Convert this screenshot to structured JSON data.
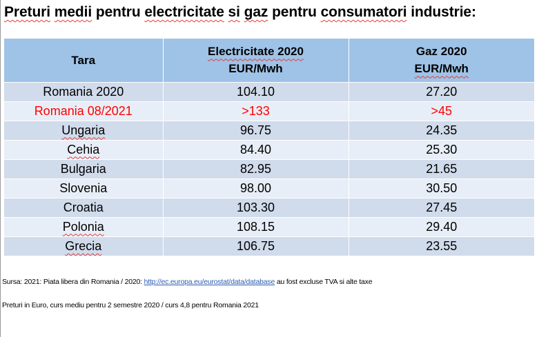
{
  "title": {
    "w1": "Preturi",
    "w2": "medii",
    "w3": "pentru",
    "w4": "electricitate",
    "w5": "si",
    "w6": "gaz",
    "w7": "pentru",
    "w8": "consumatori",
    "w9": "industrie:"
  },
  "table": {
    "headers": {
      "tara": "Tara",
      "elec_line1": "Electricitate 2020",
      "elec_line2": "EUR/Mwh",
      "gaz_line1": "Gaz 2020",
      "gaz_line2": "EUR/Mwh"
    },
    "rows": [
      {
        "country": "Romania 2020",
        "electricity": "104.10",
        "gas": "27.20"
      },
      {
        "country": "Romania 08/2021",
        "electricity": ">133",
        "gas": ">45"
      },
      {
        "country": "Ungaria",
        "electricity": "96.75",
        "gas": "24.35"
      },
      {
        "country": "Cehia",
        "electricity": "84.40",
        "gas": "25.30"
      },
      {
        "country": "Bulgaria",
        "electricity": "82.95",
        "gas": "21.65"
      },
      {
        "country": "Slovenia",
        "electricity": "98.00",
        "gas": "30.50"
      },
      {
        "country": "Croatia",
        "electricity": "103.30",
        "gas": "27.45"
      },
      {
        "country": "Polonia",
        "electricity": "108.15",
        "gas": "29.40"
      },
      {
        "country": "Grecia",
        "electricity": "106.75",
        "gas": "23.55"
      }
    ]
  },
  "notes": {
    "source_prefix": "Sursa: 2021: Piata libera din Romania / 2020: ",
    "source_link": "http://ec.europa.eu/eurostat/data/database",
    "source_suffix": " au fost excluse TVA si alte taxe",
    "currency_note": "Preturi in Euro, curs mediu pentru 2 semestre 2020 / curs 4,8 pentru Romania 2021"
  },
  "colors": {
    "header_bg": "#9fc3e7",
    "row_dark": "#d0dbeb",
    "row_light": "#e8eef7",
    "highlight_text": "#ff0000",
    "link": "#2a5db0"
  }
}
